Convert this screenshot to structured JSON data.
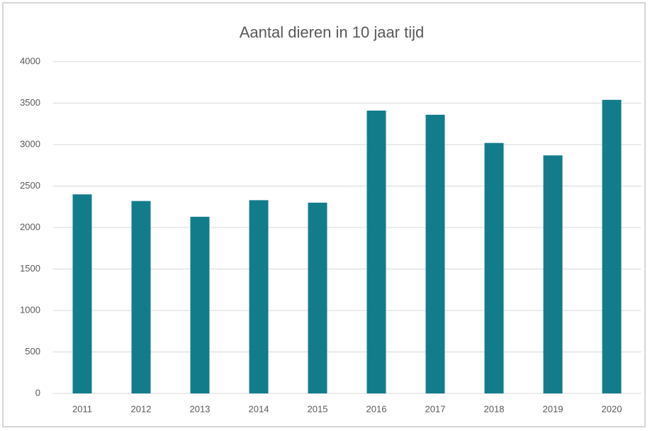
{
  "chart_data": {
    "type": "bar",
    "title": "Aantal dieren in 10 jaar tijd",
    "categories": [
      "2011",
      "2012",
      "2013",
      "2014",
      "2015",
      "2016",
      "2017",
      "2018",
      "2019",
      "2020"
    ],
    "values": [
      2400,
      2320,
      2130,
      2330,
      2300,
      3410,
      3360,
      3020,
      2870,
      3540
    ],
    "color": "#137c8b",
    "ylim": [
      0,
      4000
    ],
    "yticks": [
      0,
      500,
      1000,
      1500,
      2000,
      2500,
      3000,
      3500,
      4000
    ],
    "grid": true
  }
}
